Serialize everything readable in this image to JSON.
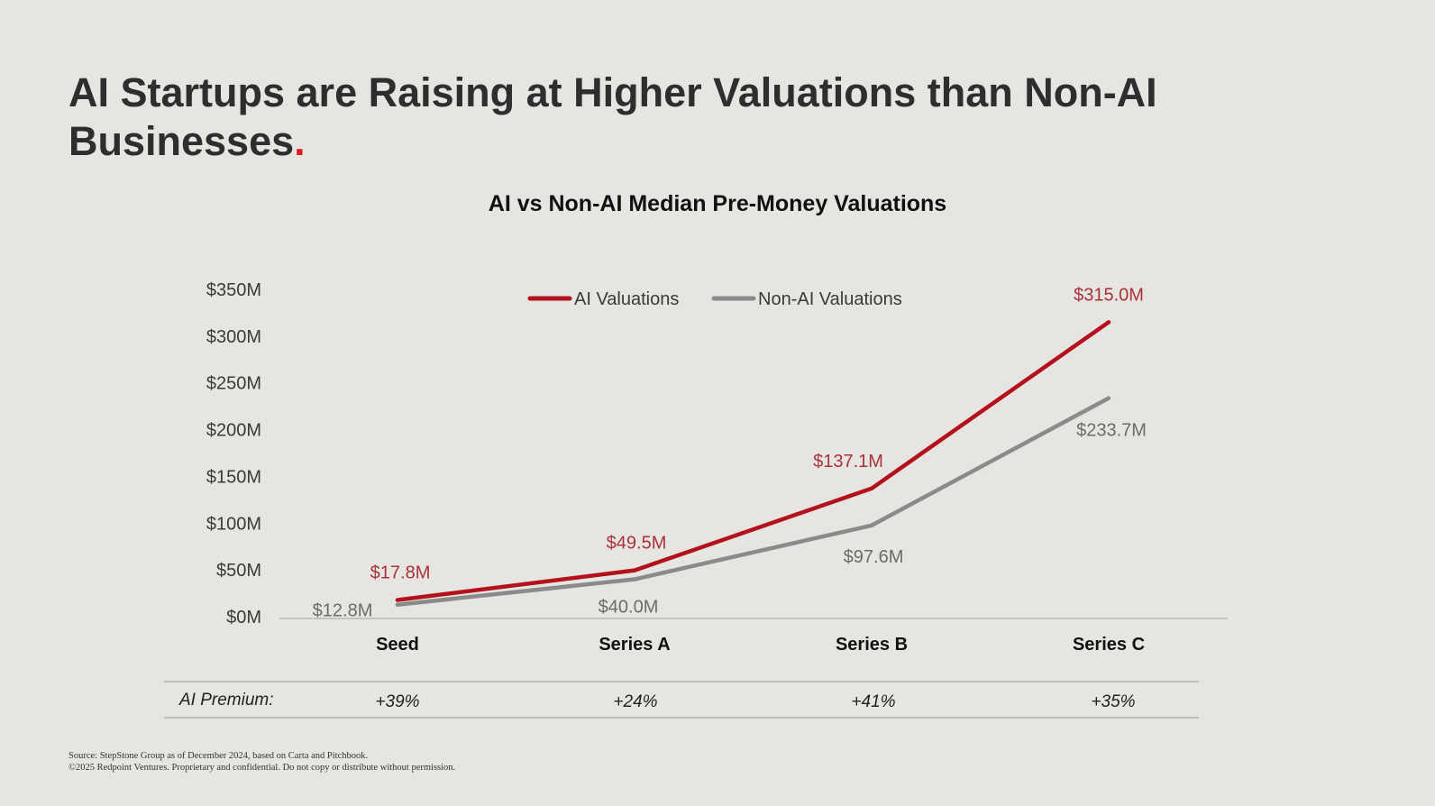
{
  "headline": {
    "text": "AI Startups are Raising at Higher Valuations than Non-AI Businesses",
    "dot": "."
  },
  "colors": {
    "ai": "#b3121d",
    "non_ai": "#8a8a8a",
    "ai_label": "#a8323a",
    "non_ai_label": "#6b6b6b",
    "accent_dot": "#e31b23",
    "background": "#e7e5e1"
  },
  "chart_data": {
    "type": "line",
    "title": "AI vs Non-AI Median Pre-Money Valuations",
    "xlabel": "",
    "ylabel": "",
    "categories": [
      "Seed",
      "Series A",
      "Series B",
      "Series C"
    ],
    "ylim": [
      0,
      350
    ],
    "yticks": [
      0,
      50,
      100,
      150,
      200,
      250,
      300,
      350
    ],
    "ytick_labels": [
      "$0M",
      "$50M",
      "$100M",
      "$150M",
      "$200M",
      "$250M",
      "$300M",
      "$350M"
    ],
    "grid": false,
    "legend_position": "top",
    "series": [
      {
        "name": "AI Valuations",
        "color_key": "ai",
        "values": [
          17.8,
          49.5,
          137.1,
          315.0
        ],
        "labels": [
          "$17.8M",
          "$49.5M",
          "$137.1M",
          "$315.0M"
        ]
      },
      {
        "name": "Non-AI Valuations",
        "color_key": "non_ai",
        "values": [
          12.8,
          40.0,
          97.6,
          233.7
        ],
        "labels": [
          "$12.8M",
          "$40.0M",
          "$97.6M",
          "$233.7M"
        ]
      }
    ]
  },
  "premium": {
    "label": "AI Premium:",
    "values": [
      "+39%",
      "+24%",
      "+41%",
      "+35%"
    ]
  },
  "footer": {
    "source": "Source: StepStone Group as of December 2024, based on Carta and Pitchbook.",
    "copyright": "©2025 Redpoint Ventures. Proprietary and confidential. Do not copy or distribute without permission."
  }
}
